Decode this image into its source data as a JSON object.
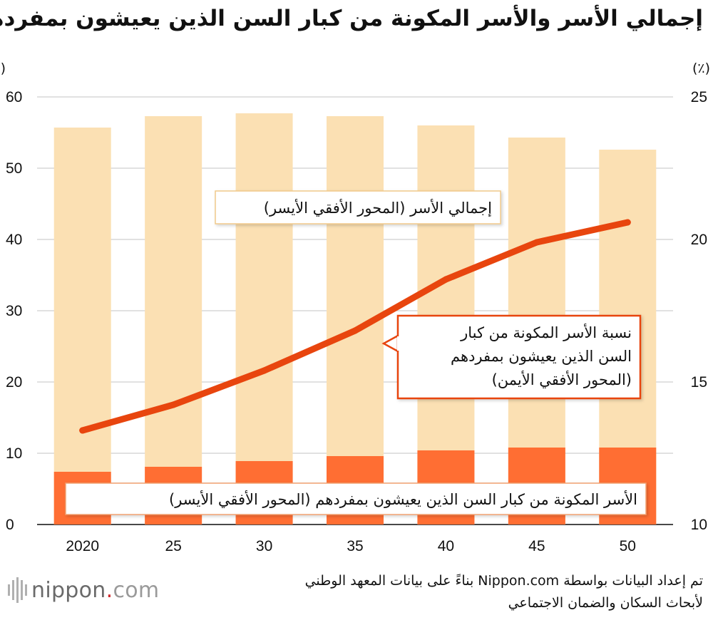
{
  "title": "إجمالي الأسر والأسر المكونة من كبار السن الذين يعيشون بمفردهم",
  "chart_data": {
    "type": "bar+line",
    "categories": [
      "2020",
      "25",
      "30",
      "35",
      "40",
      "45",
      "50"
    ],
    "series": [
      {
        "name": "إجمالي الأسر (المحور الأفقي الأيسر)",
        "type": "bar",
        "axis": "left",
        "values": [
          55.7,
          57.3,
          57.7,
          57.3,
          56.0,
          54.3,
          52.6
        ],
        "color": "#fbe0b3"
      },
      {
        "name": "الأسر المكونة من كبار السن الذين يعيشون بمفردهم (المحور الأفقي الأيسر)",
        "type": "bar",
        "axis": "left",
        "values": [
          7.4,
          8.1,
          8.9,
          9.6,
          10.4,
          10.8,
          10.8
        ],
        "color": "#ff6e33"
      },
      {
        "name": "نسبة الأسر المكونة من كبار السن الذين يعيشون بمفردهم (المحور الأفقي الأيمن)",
        "type": "line",
        "axis": "right",
        "values": [
          13.3,
          14.2,
          15.4,
          16.8,
          18.6,
          19.9,
          20.6
        ],
        "color": "#e8450e"
      }
    ],
    "left_axis": {
      "unit": "(مليون)",
      "ylim": [
        0,
        60
      ],
      "ticks": [
        "0",
        "10",
        "20",
        "30",
        "40",
        "50",
        "60"
      ]
    },
    "right_axis": {
      "unit": "(٪)",
      "ylim": [
        10,
        25
      ],
      "ticks": [
        "10",
        "15",
        "20",
        "25"
      ]
    },
    "grid": true
  },
  "callouts": {
    "total": "إجمالي الأسر (المحور الأفقي الأيسر)",
    "ratio_lines": [
      "نسبة الأسر المكونة من كبار",
      "السن الذين يعيشون بمفردهم",
      "(المحور الأفقي الأيمن)"
    ],
    "single": "الأسر المكونة من كبار السن الذين يعيشون بمفردهم (المحور الأفقي الأيسر)"
  },
  "source_lines": [
    "تم إعداد البيانات بواسطة Nippon.com بناءً على بيانات المعهد الوطني",
    "لأبحاث السكان والضمان الاجتماعي"
  ],
  "logo": {
    "word": "nippon",
    "dot": ".",
    "suffix": "com"
  }
}
